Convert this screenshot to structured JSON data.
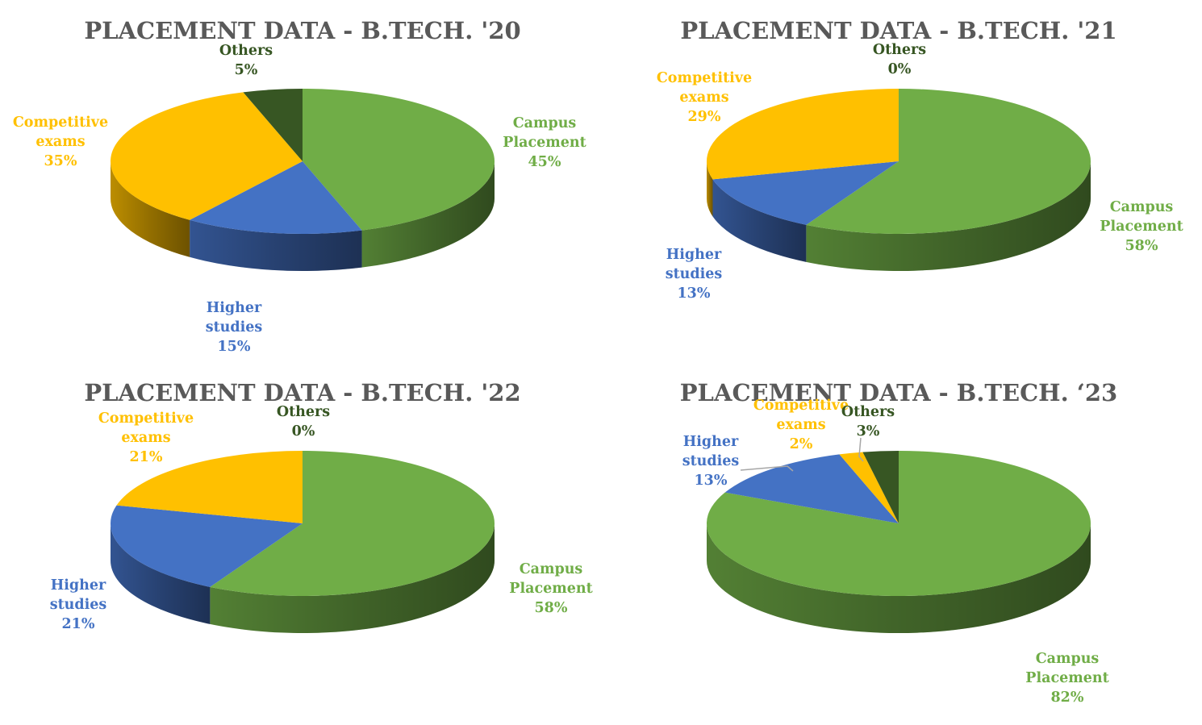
{
  "colors": {
    "campus": "#70AD47",
    "higher": "#4472C4",
    "competitive": "#FFC000",
    "others": "#375623",
    "title": "#595959"
  },
  "chart_data": [
    {
      "type": "pie",
      "title": "PLACEMENT DATA - B.TECH. '20",
      "slices": [
        {
          "key": "campus",
          "label_lines": [
            "Campus",
            "Placement"
          ],
          "value": 45,
          "pct_label": "45%"
        },
        {
          "key": "higher",
          "label_lines": [
            "Higher",
            "studies"
          ],
          "value": 15,
          "pct_label": "15%"
        },
        {
          "key": "competitive",
          "label_lines": [
            "Competitive",
            "exams"
          ],
          "value": 35,
          "pct_label": "35%"
        },
        {
          "key": "others",
          "label_lines": [
            "Others"
          ],
          "value": 5,
          "pct_label": "5%"
        }
      ]
    },
    {
      "type": "pie",
      "title": "PLACEMENT DATA -  B.TECH. '21",
      "slices": [
        {
          "key": "campus",
          "label_lines": [
            "Campus",
            "Placement"
          ],
          "value": 58,
          "pct_label": "58%"
        },
        {
          "key": "higher",
          "label_lines": [
            "Higher",
            "studies"
          ],
          "value": 13,
          "pct_label": "13%"
        },
        {
          "key": "competitive",
          "label_lines": [
            "Competitive",
            "exams"
          ],
          "value": 29,
          "pct_label": "29%"
        },
        {
          "key": "others",
          "label_lines": [
            "Others"
          ],
          "value": 0,
          "pct_label": "0%"
        }
      ]
    },
    {
      "type": "pie",
      "title": "PLACEMENT DATA -  B.TECH. '22",
      "slices": [
        {
          "key": "campus",
          "label_lines": [
            "Campus",
            "Placement"
          ],
          "value": 58,
          "pct_label": "58%"
        },
        {
          "key": "higher",
          "label_lines": [
            "Higher",
            "studies"
          ],
          "value": 21,
          "pct_label": "21%"
        },
        {
          "key": "competitive",
          "label_lines": [
            "Competitive",
            "exams"
          ],
          "value": 21,
          "pct_label": "21%"
        },
        {
          "key": "others",
          "label_lines": [
            "Others"
          ],
          "value": 0,
          "pct_label": "0%"
        }
      ]
    },
    {
      "type": "pie",
      "title": "PLACEMENT DATA -  B.TECH. ‘23",
      "slices": [
        {
          "key": "campus",
          "label_lines": [
            "Campus",
            "Placement"
          ],
          "value": 82,
          "pct_label": "82%"
        },
        {
          "key": "higher",
          "label_lines": [
            "Higher",
            "studies"
          ],
          "value": 13,
          "pct_label": "13%"
        },
        {
          "key": "competitive",
          "label_lines": [
            "Competitive",
            "exams"
          ],
          "value": 2,
          "pct_label": "2%"
        },
        {
          "key": "others",
          "label_lines": [
            "Others"
          ],
          "value": 3,
          "pct_label": "3%"
        }
      ]
    }
  ]
}
